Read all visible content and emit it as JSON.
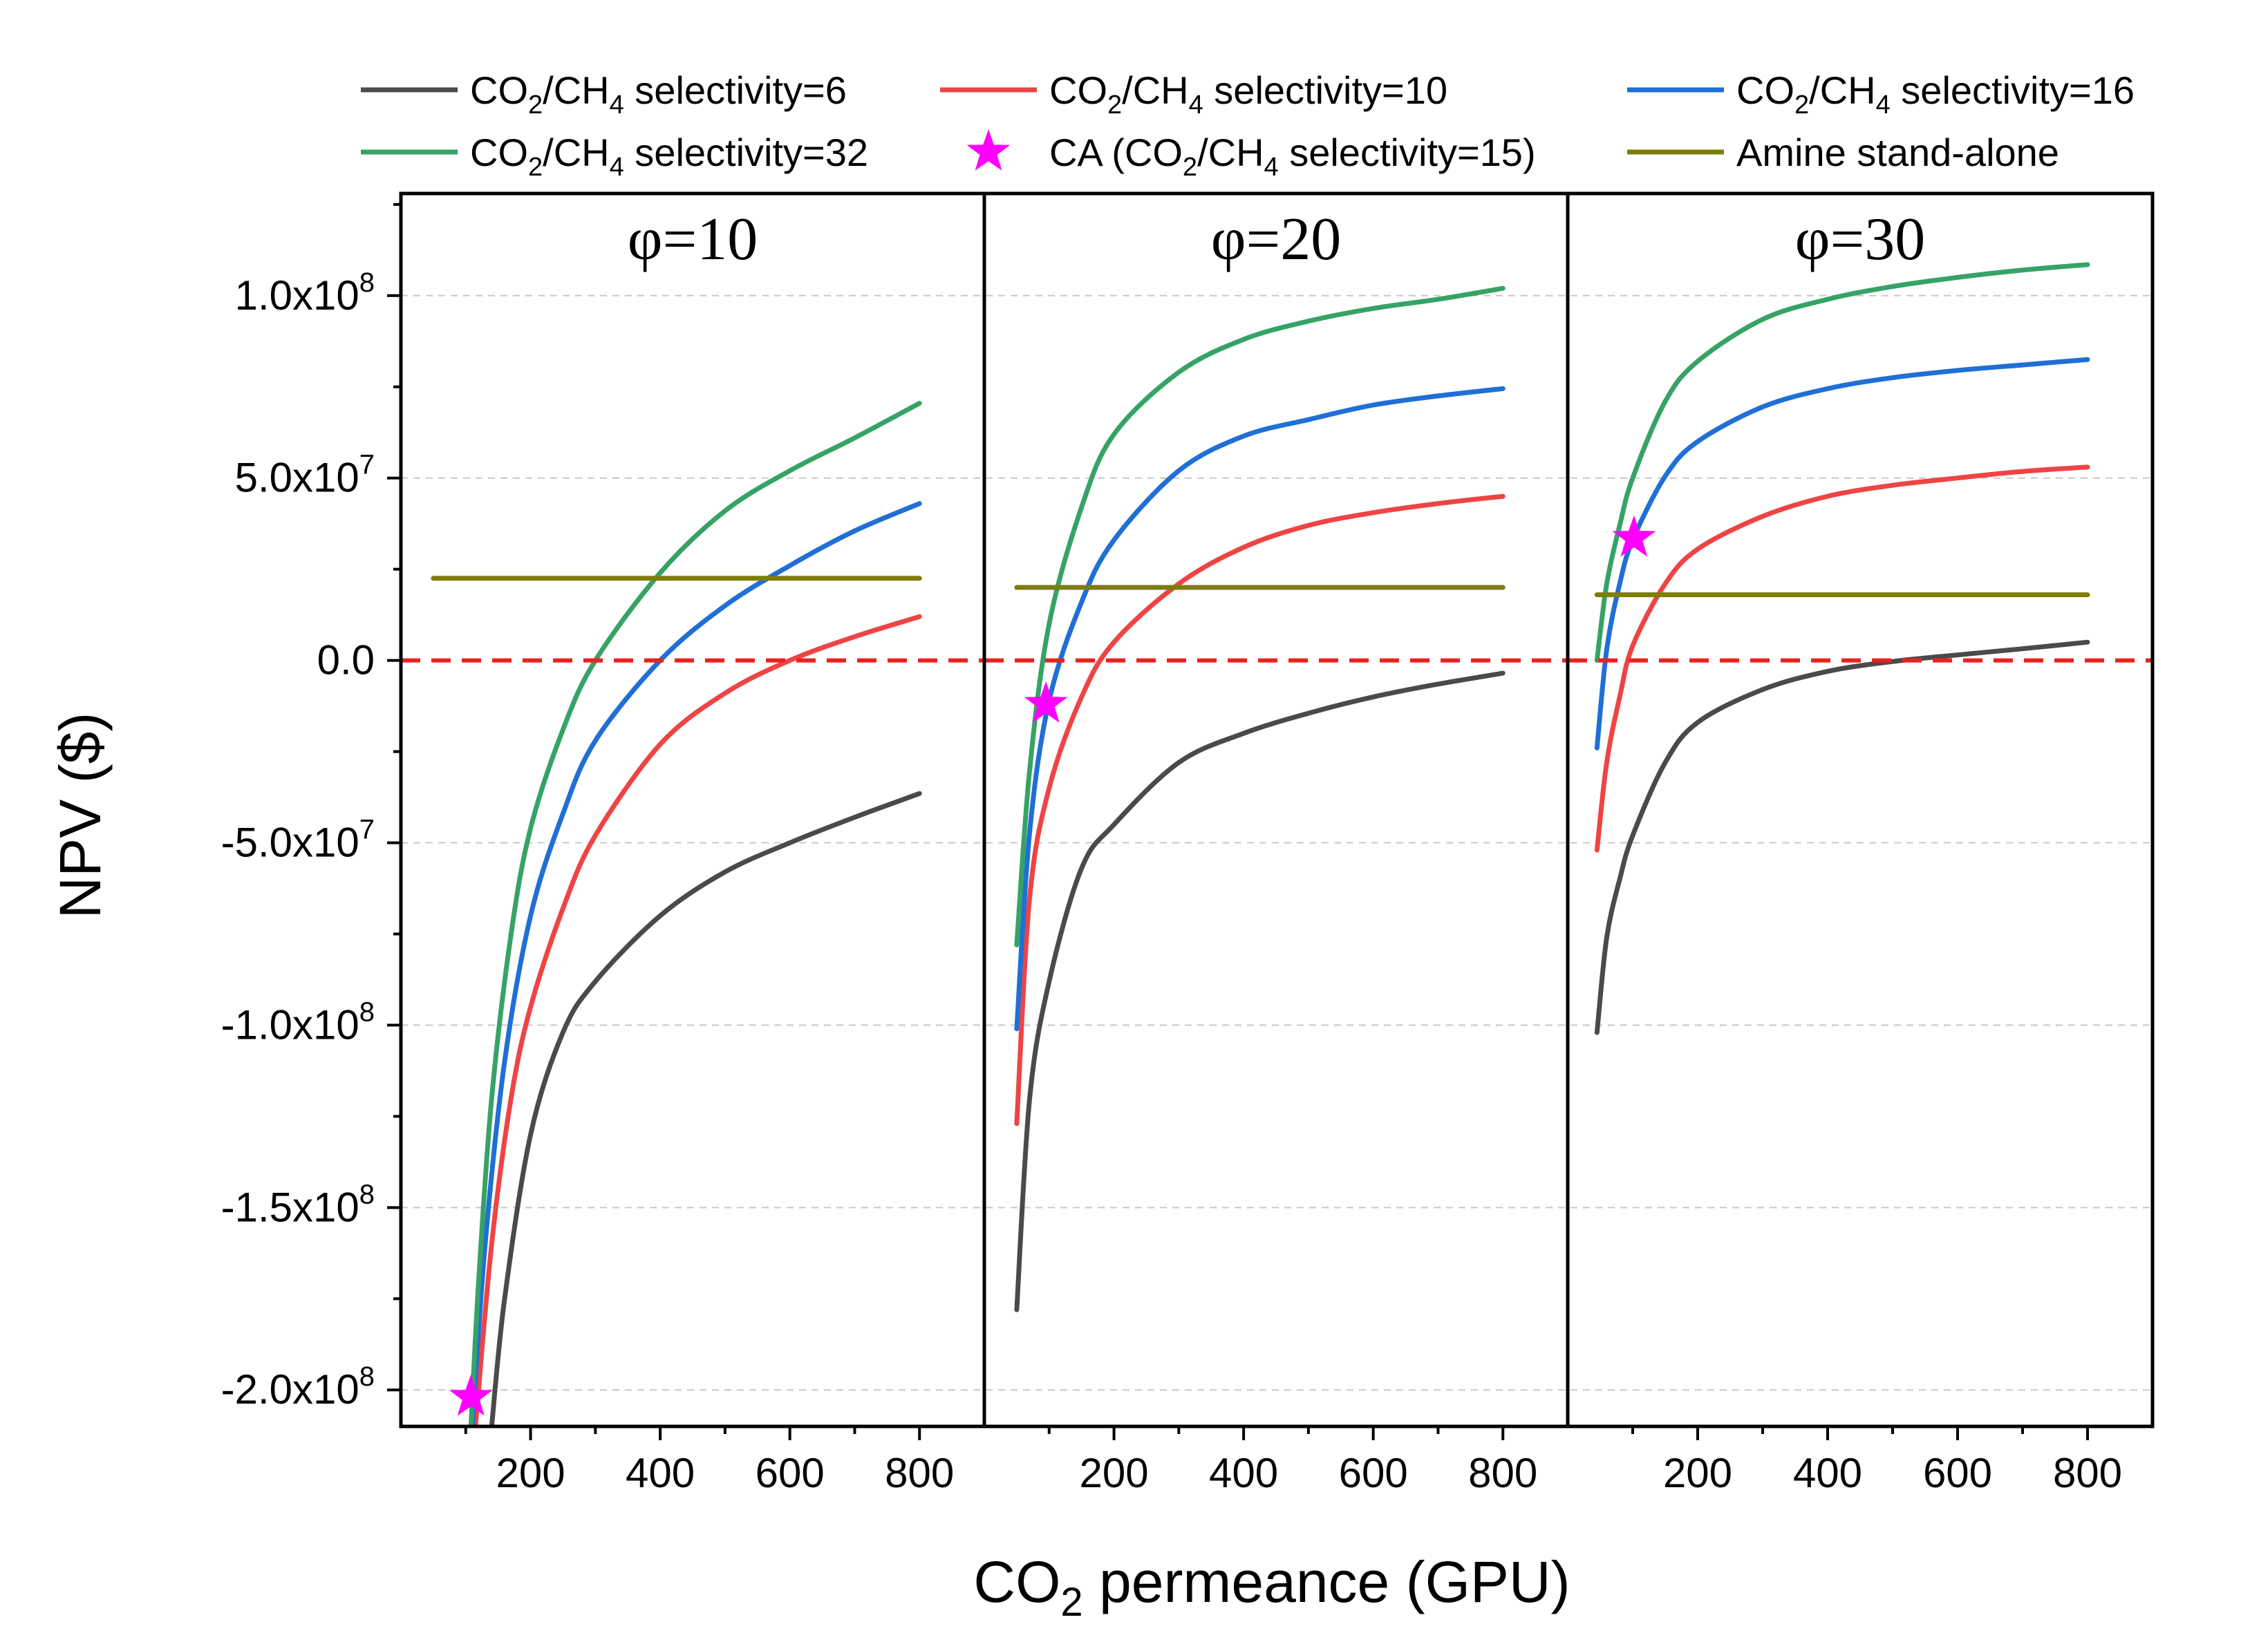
{
  "chart_data": {
    "type": "line",
    "ylabel": "NPV ($)",
    "xlabel_parts": {
      "main": "CO",
      "sub": "2",
      "rest": " permeance (GPU)"
    },
    "ylim": [
      -210000000,
      128000000
    ],
    "xlim": [
      0,
      900
    ],
    "x_ticks": [
      200,
      400,
      600,
      800
    ],
    "x_tick_labels": [
      "200",
      "400",
      "600",
      "800"
    ],
    "y_ticks": [
      -200000000,
      -150000000,
      -100000000,
      -50000000,
      0,
      50000000,
      100000000
    ],
    "y_tick_labels": [
      {
        "mant": "-2.0x10",
        "exp": "8"
      },
      {
        "mant": "-1.5x10",
        "exp": "8"
      },
      {
        "mant": "-1.0x10",
        "exp": "8"
      },
      {
        "mant": "-5.0x10",
        "exp": "7"
      },
      {
        "mant": "0.0",
        "exp": ""
      },
      {
        "mant": "5.0x10",
        "exp": "7"
      },
      {
        "mant": "1.0x10",
        "exp": "8"
      }
    ],
    "zero_line": {
      "value": 0,
      "color": "#e8231f"
    },
    "colors": {
      "sel6": "#4a4a4a",
      "sel10": "#ee4444",
      "sel16": "#1f6fd6",
      "sel32": "#36a366",
      "amine": "#7d7d07",
      "ca": "#ff00ff"
    },
    "legend": [
      {
        "key": "sel6",
        "type": "line",
        "pre": "CO",
        "s1": "2",
        "mid": "/CH",
        "s2": "4",
        "post": " selectivity=6"
      },
      {
        "key": "sel10",
        "type": "line",
        "pre": "CO",
        "s1": "2",
        "mid": "/CH",
        "s2": "4",
        "post": " selectivity=10"
      },
      {
        "key": "sel16",
        "type": "line",
        "pre": "CO",
        "s1": "2",
        "mid": "/CH",
        "s2": "4",
        "post": " selectivity=16"
      },
      {
        "key": "sel32",
        "type": "line",
        "pre": "CO",
        "s1": "2",
        "mid": "/CH",
        "s2": "4",
        "post": " selectivity=32"
      },
      {
        "key": "ca",
        "type": "star",
        "pre": "CA (CO",
        "s1": "2",
        "mid": "/CH",
        "s2": "4",
        "post": " selectivity=15)"
      },
      {
        "key": "amine",
        "type": "line",
        "pre": "Amine stand-alone",
        "s1": "",
        "mid": "",
        "s2": "",
        "post": ""
      }
    ],
    "panels": [
      {
        "title": "φ=10",
        "series": [
          {
            "key": "sel6",
            "x": [
              140,
              160,
              200,
              250,
              300,
              400,
              500,
              600,
              700,
              800
            ],
            "y": [
              -210000000,
              -175000000,
              -130000000,
              -102000000,
              -88000000,
              -70000000,
              -58000000,
              -50000000,
              -43000000,
              -36500000
            ]
          },
          {
            "key": "sel10",
            "x": [
              115,
              140,
              170,
              200,
              250,
              300,
              400,
              500,
              600,
              700,
              800
            ],
            "y": [
              -210000000,
              -160000000,
              -120000000,
              -95000000,
              -68000000,
              -48000000,
              -23000000,
              -9000000,
              0,
              6500000,
              12000000
            ]
          },
          {
            "key": "sel16",
            "x": [
              110,
              130,
              160,
              200,
              250,
              300,
              400,
              500,
              600,
              700,
              800
            ],
            "y": [
              -210000000,
              -160000000,
              -110000000,
              -70000000,
              -42000000,
              -22000000,
              0,
              15000000,
              26000000,
              35500000,
              43000000
            ]
          },
          {
            "key": "sel32",
            "x": [
              108,
              120,
              140,
              170,
              200,
              250,
              300,
              400,
              500,
              600,
              700,
              800
            ],
            "y": [
              -210000000,
              -170000000,
              -120000000,
              -75000000,
              -46000000,
              -19000000,
              0,
              24000000,
              41000000,
              52000000,
              61000000,
              70500000
            ]
          },
          {
            "key": "amine",
            "x": [
              50,
              800
            ],
            "y": [
              22500000,
              22500000
            ]
          }
        ],
        "star": {
          "x": 108,
          "y": -202000000
        }
      },
      {
        "title": "φ=20",
        "series": [
          {
            "key": "sel6",
            "x": [
              50,
              70,
              100,
              150,
              200,
              300,
              400,
              500,
              600,
              700,
              800
            ],
            "y": [
              -178000000,
              -120000000,
              -88000000,
              -57000000,
              -45000000,
              -28000000,
              -20000000,
              -14500000,
              -10000000,
              -6500000,
              -3500000
            ]
          },
          {
            "key": "sel10",
            "x": [
              50,
              70,
              100,
              150,
              200,
              300,
              400,
              500,
              600,
              700,
              800
            ],
            "y": [
              -127000000,
              -65000000,
              -35000000,
              -10000000,
              5000000,
              21000000,
              31000000,
              37000000,
              40500000,
              43000000,
              45000000
            ]
          },
          {
            "key": "sel16",
            "x": [
              50,
              70,
              100,
              150,
              200,
              300,
              400,
              500,
              600,
              700,
              800
            ],
            "y": [
              -101000000,
              -47000000,
              -11000000,
              16000000,
              33000000,
              52000000,
              61500000,
              66000000,
              70000000,
              72500000,
              74500000
            ]
          },
          {
            "key": "sel32",
            "x": [
              50,
              70,
              100,
              150,
              200,
              300,
              400,
              500,
              600,
              700,
              800
            ],
            "y": [
              -78000000,
              -30000000,
              10000000,
              42000000,
              62000000,
              79000000,
              88000000,
              93000000,
              96500000,
              99000000,
              102000000
            ]
          },
          {
            "key": "amine",
            "x": [
              50,
              800
            ],
            "y": [
              20000000,
              20000000
            ]
          }
        ],
        "star": {
          "x": 95,
          "y": -12000000
        }
      },
      {
        "title": "φ=30",
        "series": [
          {
            "key": "sel6",
            "x": [
              45,
              60,
              80,
              100,
              150,
              200,
              300,
              400,
              500,
              600,
              700,
              800
            ],
            "y": [
              -102000000,
              -76000000,
              -60000000,
              -48000000,
              -28000000,
              -17000000,
              -8000000,
              -3000000,
              -300000,
              1500000,
              3200000,
              5000000
            ]
          },
          {
            "key": "sel10",
            "x": [
              45,
              60,
              80,
              100,
              150,
              200,
              300,
              400,
              500,
              600,
              700,
              800
            ],
            "y": [
              -52000000,
              -28000000,
              -10000000,
              4000000,
              21000000,
              30500000,
              39500000,
              45000000,
              48000000,
              50000000,
              51800000,
              53000000
            ]
          },
          {
            "key": "sel16",
            "x": [
              45,
              60,
              80,
              100,
              150,
              200,
              300,
              400,
              500,
              600,
              700,
              800
            ],
            "y": [
              -24000000,
              3000000,
              21000000,
              33000000,
              50500000,
              60000000,
              69500000,
              74500000,
              77500000,
              79500000,
              81000000,
              82500000
            ]
          },
          {
            "key": "sel32",
            "x": [
              45,
              60,
              80,
              100,
              150,
              200,
              300,
              400,
              500,
              600,
              700,
              800
            ],
            "y": [
              0,
              21000000,
              37000000,
              50000000,
              71000000,
              82000000,
              93500000,
              99000000,
              102500000,
              105000000,
              107000000,
              108500000
            ]
          },
          {
            "key": "amine",
            "x": [
              45,
              800
            ],
            "y": [
              18000000,
              18000000
            ]
          }
        ],
        "star": {
          "x": 102,
          "y": 33500000
        }
      }
    ]
  }
}
